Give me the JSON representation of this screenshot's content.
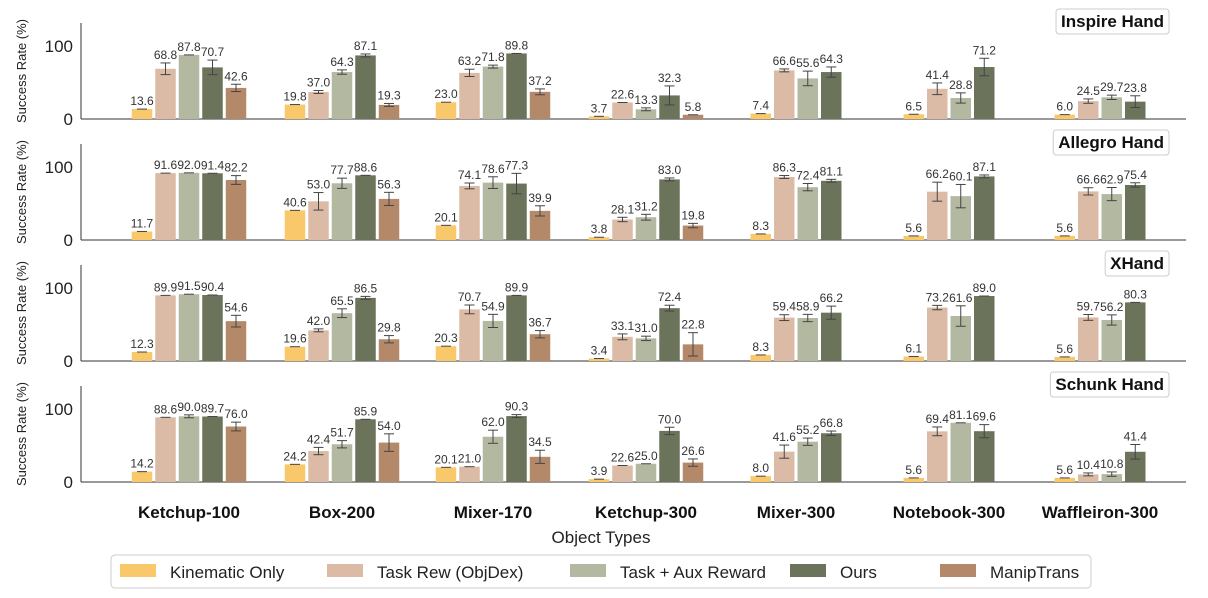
{
  "chart_data": {
    "type": "bar",
    "xlabel": "Object Types",
    "ylabel": "Success Rate (%)",
    "ylim": [
      0,
      130
    ],
    "yticks": [
      0,
      100
    ],
    "categories": [
      "Ketchup-100",
      "Box-200",
      "Mixer-170",
      "Ketchup-300",
      "Mixer-300",
      "Notebook-300",
      "Waffleiron-300"
    ],
    "series_names": [
      "Kinematic Only",
      "Task Rew (ObjDex)",
      "Task + Aux Reward",
      "Ours",
      "ManipTrans"
    ],
    "colors": [
      "#f9c86a",
      "#dcbba6",
      "#b3b8a0",
      "#6b735b",
      "#b4896a"
    ],
    "legend_position": "bottom",
    "panels": [
      {
        "title": "Inspire Hand",
        "values": [
          [
            13.6,
            68.8,
            87.8,
            70.7,
            42.6
          ],
          [
            19.8,
            37.0,
            64.3,
            87.1,
            19.3
          ],
          [
            23.0,
            63.2,
            71.8,
            89.8,
            37.2
          ],
          [
            3.7,
            22.6,
            13.3,
            32.3,
            5.8
          ],
          [
            7.4,
            66.6,
            55.6,
            64.3,
            null
          ],
          [
            6.5,
            41.4,
            28.8,
            71.2,
            null
          ],
          [
            6.0,
            24.5,
            29.7,
            23.8,
            null
          ]
        ],
        "errors": [
          [
            1.0,
            8.0,
            1.0,
            10.0,
            5.0
          ],
          [
            1.0,
            2.0,
            3.0,
            2.0,
            2.0
          ],
          [
            1.0,
            5.0,
            2.0,
            1.0,
            4.0
          ],
          [
            1.0,
            1.0,
            2.0,
            13.0,
            1.0
          ],
          [
            1.0,
            2.0,
            10.0,
            7.0,
            null
          ],
          [
            1.0,
            8.0,
            7.0,
            12.0,
            null
          ],
          [
            1.0,
            3.0,
            3.0,
            8.0,
            null
          ]
        ]
      },
      {
        "title": "Allegro Hand",
        "values": [
          [
            11.7,
            91.6,
            92.0,
            91.4,
            82.2
          ],
          [
            40.6,
            53.0,
            77.7,
            88.6,
            56.3
          ],
          [
            20.1,
            74.1,
            78.6,
            77.3,
            39.9
          ],
          [
            3.8,
            28.1,
            31.2,
            83.0,
            19.8
          ],
          [
            8.3,
            86.3,
            72.4,
            81.1,
            null
          ],
          [
            5.6,
            66.2,
            60.1,
            87.1,
            null
          ],
          [
            5.6,
            66.6,
            62.9,
            75.4,
            null
          ]
        ],
        "errors": [
          [
            1.0,
            1.0,
            1.0,
            1.0,
            6.0
          ],
          [
            1.0,
            12.0,
            7.0,
            1.0,
            9.0
          ],
          [
            1.0,
            4.0,
            8.0,
            14.0,
            7.0
          ],
          [
            1.0,
            3.0,
            4.0,
            2.0,
            3.0
          ],
          [
            1.0,
            2.0,
            5.0,
            2.0,
            null
          ],
          [
            1.0,
            13.0,
            16.0,
            2.0,
            null
          ],
          [
            1.0,
            5.0,
            9.0,
            3.0,
            null
          ]
        ]
      },
      {
        "title": "XHand",
        "values": [
          [
            12.3,
            89.9,
            91.5,
            90.4,
            54.6
          ],
          [
            19.6,
            42.0,
            65.5,
            86.5,
            29.8
          ],
          [
            20.3,
            70.7,
            54.9,
            89.9,
            36.7
          ],
          [
            3.4,
            33.1,
            31.0,
            72.4,
            22.8
          ],
          [
            8.3,
            59.4,
            58.9,
            66.2,
            null
          ],
          [
            6.1,
            73.2,
            61.6,
            89.0,
            null
          ],
          [
            5.6,
            59.7,
            56.2,
            80.3,
            null
          ]
        ],
        "errors": [
          [
            1.0,
            1.0,
            1.0,
            1.0,
            8.0
          ],
          [
            1.0,
            2.0,
            6.0,
            2.0,
            5.0
          ],
          [
            1.0,
            6.0,
            9.0,
            1.0,
            5.0
          ],
          [
            1.0,
            4.0,
            3.0,
            4.0,
            16.0
          ],
          [
            1.0,
            4.0,
            5.0,
            9.0,
            null
          ],
          [
            1.0,
            3.0,
            14.0,
            1.0,
            null
          ],
          [
            1.0,
            4.0,
            7.0,
            1.0,
            null
          ]
        ]
      },
      {
        "title": "Schunk Hand",
        "values": [
          [
            14.2,
            88.6,
            90.0,
            89.7,
            76.0
          ],
          [
            24.2,
            42.4,
            51.7,
            85.9,
            54.0
          ],
          [
            20.1,
            21.0,
            62.0,
            90.3,
            34.5
          ],
          [
            3.9,
            22.6,
            25.0,
            70.0,
            26.6
          ],
          [
            8.0,
            41.6,
            55.2,
            66.8,
            null
          ],
          [
            5.6,
            69.4,
            81.1,
            69.6,
            null
          ],
          [
            5.6,
            10.4,
            10.8,
            41.4,
            null
          ]
        ],
        "errors": [
          [
            1.0,
            1.0,
            2.0,
            1.0,
            6.0
          ],
          [
            1.0,
            5.0,
            5.0,
            1.0,
            12.0
          ],
          [
            1.0,
            1.0,
            9.0,
            2.0,
            9.0
          ],
          [
            1.0,
            1.0,
            1.0,
            5.0,
            5.0
          ],
          [
            1.0,
            9.0,
            5.0,
            3.0,
            null
          ],
          [
            1.0,
            6.0,
            1.0,
            9.0,
            null
          ],
          [
            1.0,
            2.0,
            3.0,
            10.0,
            null
          ]
        ]
      }
    ]
  }
}
